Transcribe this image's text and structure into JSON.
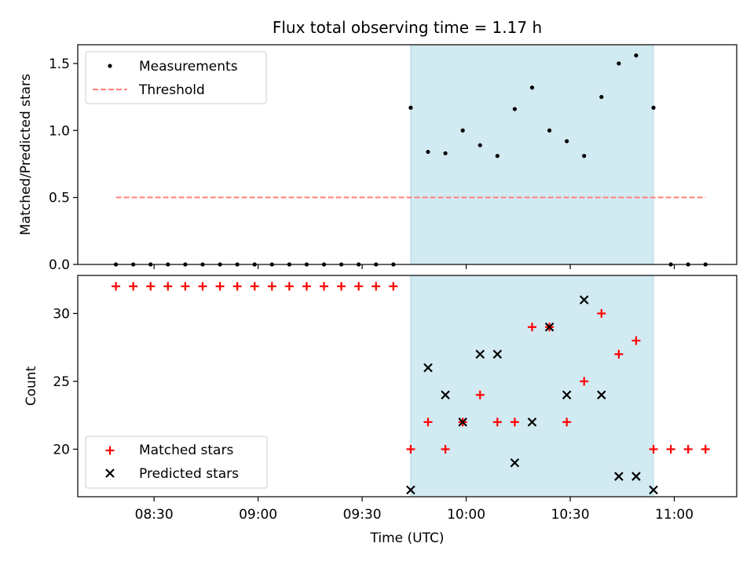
{
  "chart_data": [
    {
      "type": "scatter",
      "title": "Flux total observing time = 1.17 h",
      "ylabel": "Matched/Predicted stars",
      "xlim": [
        "08:08",
        "11:18"
      ],
      "ylim": [
        0,
        1.64
      ],
      "yticks": [
        0.0,
        0.5,
        1.0,
        1.5
      ],
      "ytick_labels": [
        "0.0",
        "0.5",
        "1.0",
        "1.5"
      ],
      "shaded_span": [
        "09:44",
        "10:54"
      ],
      "shade_color": "#add8e6",
      "legend_position": "upper-left",
      "series": [
        {
          "name": "Measurements",
          "marker": "dot",
          "color": "#000000",
          "x": [
            "08:19",
            "08:24",
            "08:29",
            "08:34",
            "08:39",
            "08:44",
            "08:49",
            "08:54",
            "08:59",
            "09:04",
            "09:09",
            "09:14",
            "09:19",
            "09:24",
            "09:29",
            "09:34",
            "09:39",
            "09:44",
            "09:49",
            "09:54",
            "09:59",
            "10:04",
            "10:09",
            "10:14",
            "10:19",
            "10:24",
            "10:29",
            "10:34",
            "10:39",
            "10:44",
            "10:49",
            "10:54",
            "10:59",
            "11:04",
            "11:09"
          ],
          "y": [
            0,
            0,
            0,
            0,
            0,
            0,
            0,
            0,
            0,
            0,
            0,
            0,
            0,
            0,
            0,
            0,
            0,
            1.17,
            0.84,
            0.83,
            1.0,
            0.89,
            0.81,
            1.16,
            1.32,
            1.0,
            0.92,
            0.81,
            1.25,
            1.5,
            1.56,
            1.17,
            0,
            0,
            0
          ]
        },
        {
          "name": "Threshold",
          "style": "dashed-line",
          "color": "#ff7f7f",
          "x": [
            "08:19",
            "11:09"
          ],
          "y": [
            0.5,
            0.5
          ]
        }
      ]
    },
    {
      "type": "scatter",
      "xlabel": "Time (UTC)",
      "ylabel": "Count",
      "xlim": [
        "08:08",
        "11:18"
      ],
      "ylim": [
        16.5,
        32.8
      ],
      "xticks": [
        "08:30",
        "09:00",
        "09:30",
        "10:00",
        "10:30",
        "11:00"
      ],
      "yticks": [
        20,
        25,
        30
      ],
      "ytick_labels": [
        "20",
        "25",
        "30"
      ],
      "shaded_span": [
        "09:44",
        "10:54"
      ],
      "shade_color": "#add8e6",
      "legend_position": "lower-left",
      "series": [
        {
          "name": "Matched stars",
          "marker": "plus",
          "color": "#ff0000",
          "x": [
            "08:19",
            "08:24",
            "08:29",
            "08:34",
            "08:39",
            "08:44",
            "08:49",
            "08:54",
            "08:59",
            "09:04",
            "09:09",
            "09:14",
            "09:19",
            "09:24",
            "09:29",
            "09:34",
            "09:39",
            "09:44",
            "09:49",
            "09:54",
            "09:59",
            "10:04",
            "10:09",
            "10:14",
            "10:19",
            "10:24",
            "10:29",
            "10:34",
            "10:39",
            "10:44",
            "10:49",
            "10:54",
            "10:59",
            "11:04",
            "11:09"
          ],
          "y": [
            32,
            32,
            32,
            32,
            32,
            32,
            32,
            32,
            32,
            32,
            32,
            32,
            32,
            32,
            32,
            32,
            32,
            20,
            22,
            20,
            22,
            24,
            22,
            22,
            29,
            29,
            22,
            25,
            30,
            27,
            28,
            20,
            20,
            20,
            20
          ]
        },
        {
          "name": "Predicted stars",
          "marker": "x",
          "color": "#000000",
          "x": [
            "09:44",
            "09:49",
            "09:54",
            "09:59",
            "10:04",
            "10:09",
            "10:14",
            "10:19",
            "10:24",
            "10:29",
            "10:34",
            "10:39",
            "10:44",
            "10:49",
            "10:54"
          ],
          "y": [
            17,
            26,
            24,
            22,
            27,
            27,
            19,
            22,
            29,
            24,
            31,
            24,
            18,
            18,
            17
          ]
        }
      ]
    }
  ]
}
